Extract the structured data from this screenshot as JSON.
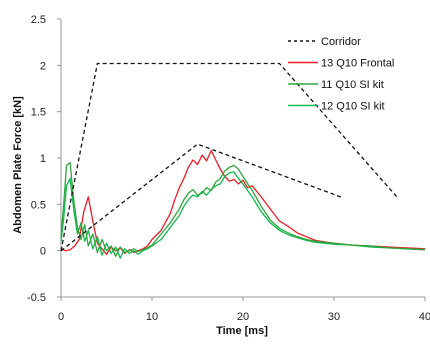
{
  "chart_data": {
    "type": "line",
    "xlabel": "Time  [ms]",
    "ylabel": "Abdomen Plate Force [kN]",
    "xlim": [
      0,
      40
    ],
    "ylim": [
      -0.5,
      2.5
    ],
    "xticks": [
      0,
      10,
      20,
      30,
      40
    ],
    "yticks": [
      -0.5,
      0,
      0.5,
      1,
      1.5,
      2,
      2.5
    ],
    "xtick_labels": [
      "0",
      "10",
      "20",
      "30",
      "40"
    ],
    "ytick_labels": [
      "-0.5",
      "0",
      "0.5",
      "1",
      "1.5",
      "2",
      "2.5"
    ],
    "grid": false,
    "legend_position": "top-right",
    "series": [
      {
        "name": "Corridor",
        "style": "dashed",
        "color": "#111111",
        "segments": [
          [
            [
              0,
              0
            ],
            [
              15,
              1.15
            ],
            [
              31,
              0.57
            ]
          ],
          [
            [
              0,
              0
            ],
            [
              4,
              2.02
            ],
            [
              24,
              2.02
            ],
            [
              37,
              0.57
            ]
          ]
        ]
      },
      {
        "name": "13 Q10 Frontal",
        "style": "solid",
        "color": "#ee1c25",
        "x": [
          0,
          0.5,
          1,
          1.5,
          2,
          2.5,
          3,
          3.5,
          4,
          4.5,
          5,
          5.5,
          6,
          6.5,
          7,
          7.5,
          8,
          8.5,
          9,
          9.5,
          10,
          11,
          12,
          12.5,
          13,
          13.5,
          14,
          14.5,
          15,
          15.5,
          16,
          16.5,
          17,
          17.5,
          18,
          18.5,
          19,
          19.5,
          20,
          20.5,
          21,
          22,
          23,
          24,
          25,
          26,
          27,
          28,
          30,
          32,
          34,
          36,
          38,
          40
        ],
        "y": [
          0.02,
          0.0,
          0.01,
          0.05,
          0.12,
          0.42,
          0.58,
          0.32,
          0.08,
          0.02,
          -0.04,
          0.04,
          0.0,
          0.03,
          -0.03,
          0.01,
          -0.02,
          0.0,
          0.02,
          0.05,
          0.12,
          0.22,
          0.4,
          0.55,
          0.68,
          0.78,
          0.9,
          0.98,
          0.93,
          1.03,
          0.97,
          1.08,
          0.98,
          0.88,
          0.8,
          0.75,
          0.77,
          0.72,
          0.76,
          0.68,
          0.7,
          0.58,
          0.45,
          0.32,
          0.26,
          0.19,
          0.15,
          0.11,
          0.08,
          0.06,
          0.05,
          0.04,
          0.03,
          0.02
        ]
      },
      {
        "name": "11 Q10 SI kit",
        "style": "solid",
        "color": "#2fa53d",
        "x": [
          0,
          0.3,
          0.6,
          1,
          1.4,
          1.8,
          2.2,
          2.6,
          3,
          3.5,
          4,
          4.5,
          5,
          5.5,
          6,
          6.5,
          7,
          7.5,
          8,
          8.5,
          9,
          9.5,
          10,
          11,
          12,
          13,
          13.5,
          14,
          14.5,
          15,
          15.5,
          16,
          16.5,
          17,
          17.5,
          18,
          18.5,
          19,
          19.5,
          20,
          21,
          22,
          23,
          24,
          25,
          26,
          27,
          28,
          30,
          32,
          34,
          36,
          38,
          40
        ],
        "y": [
          0.15,
          0.5,
          0.92,
          0.95,
          0.55,
          0.25,
          0.12,
          0.28,
          0.05,
          0.18,
          -0.02,
          0.12,
          0.0,
          0.05,
          -0.06,
          0.04,
          -0.02,
          0.0,
          0.02,
          -0.01,
          0.01,
          0.03,
          0.06,
          0.18,
          0.3,
          0.45,
          0.55,
          0.62,
          0.66,
          0.6,
          0.62,
          0.68,
          0.65,
          0.74,
          0.78,
          0.86,
          0.9,
          0.92,
          0.88,
          0.8,
          0.65,
          0.48,
          0.33,
          0.24,
          0.19,
          0.15,
          0.12,
          0.1,
          0.08,
          0.06,
          0.05,
          0.03,
          0.02,
          0.01
        ]
      },
      {
        "name": "12 Q10 SI kit",
        "style": "solid",
        "color": "#0fba4e",
        "x": [
          0,
          0.3,
          0.6,
          1,
          1.4,
          1.8,
          2.2,
          2.6,
          3,
          3.5,
          4,
          4.5,
          5,
          5.5,
          6,
          6.5,
          7,
          7.5,
          8,
          8.5,
          9,
          9.5,
          10,
          11,
          12,
          13,
          13.5,
          14,
          14.5,
          15,
          15.5,
          16,
          16.5,
          17,
          17.5,
          18,
          18.5,
          19,
          19.5,
          20,
          21,
          22,
          23,
          24,
          25,
          26,
          27,
          28,
          30,
          32,
          34,
          36,
          38,
          40
        ],
        "y": [
          0.1,
          0.35,
          0.7,
          0.78,
          0.45,
          0.18,
          0.3,
          0.1,
          0.22,
          0.02,
          0.15,
          -0.05,
          0.08,
          -0.03,
          0.04,
          -0.08,
          0.02,
          -0.03,
          0.0,
          -0.04,
          0.0,
          0.02,
          0.05,
          0.12,
          0.25,
          0.38,
          0.48,
          0.55,
          0.6,
          0.58,
          0.64,
          0.6,
          0.66,
          0.7,
          0.72,
          0.8,
          0.84,
          0.85,
          0.78,
          0.72,
          0.58,
          0.42,
          0.3,
          0.22,
          0.17,
          0.14,
          0.11,
          0.09,
          0.07,
          0.06,
          0.04,
          0.03,
          0.02,
          0.01
        ]
      }
    ]
  }
}
